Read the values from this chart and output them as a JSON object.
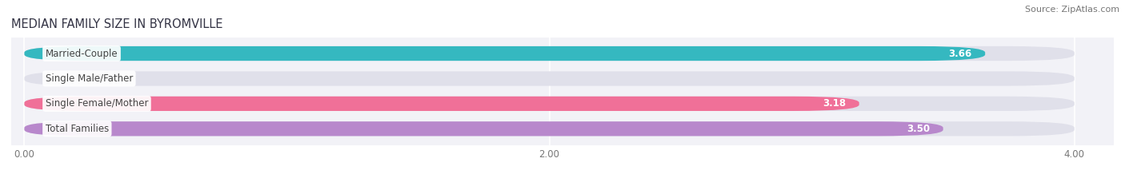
{
  "title": "MEDIAN FAMILY SIZE IN BYROMVILLE",
  "source": "Source: ZipAtlas.com",
  "categories": [
    "Married-Couple",
    "Single Male/Father",
    "Single Female/Mother",
    "Total Families"
  ],
  "values": [
    3.66,
    0.0,
    3.18,
    3.5
  ],
  "bar_colors": [
    "#35b8c0",
    "#a8b8e8",
    "#f07098",
    "#b888cc"
  ],
  "background_color": "#f2f2f7",
  "bar_bg_color": "#e0e0ea",
  "xlim": [
    0,
    4.0
  ],
  "xticks": [
    0.0,
    2.0,
    4.0
  ],
  "label_fontsize": 8.5,
  "value_fontsize": 8.5,
  "title_fontsize": 10.5,
  "source_fontsize": 8
}
